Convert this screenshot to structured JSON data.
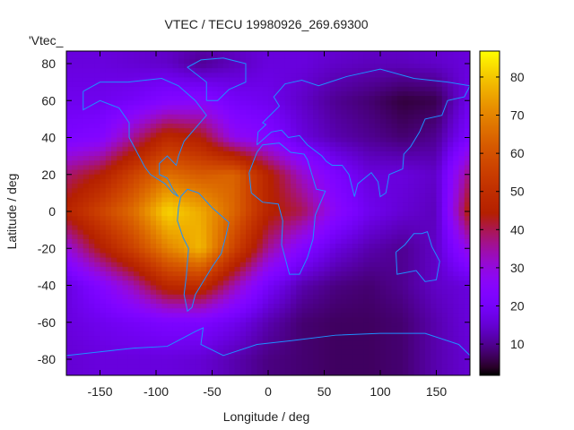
{
  "chart_data": {
    "type": "heatmap",
    "title": "VTEC / TECU 19980926_269.69300",
    "xlabel": "Longitude / deg",
    "ylabel": "Latitude / deg",
    "key_label": "'Vtec_",
    "xlim": [
      -180,
      180
    ],
    "ylim": [
      -88.7,
      86.8
    ],
    "xticks": [
      -150,
      -100,
      -50,
      0,
      50,
      100,
      150
    ],
    "yticks": [
      -80,
      -60,
      -40,
      -20,
      0,
      20,
      40,
      60,
      80
    ],
    "colorbar": {
      "range": [
        1.8,
        86.8
      ],
      "ticks": [
        10,
        20,
        30,
        40,
        50,
        60,
        70,
        80
      ],
      "palette": "black-purple-red-orange-yellow"
    },
    "grid_lon": [
      -180,
      -150,
      -120,
      -90,
      -60,
      -30,
      0,
      30,
      60,
      90,
      120,
      150,
      180
    ],
    "grid_lat": [
      90,
      80,
      60,
      40,
      20,
      0,
      -20,
      -40,
      -60,
      -80,
      -90
    ],
    "values": [
      [
        16,
        16,
        15,
        14,
        12,
        14,
        16,
        16,
        15,
        14,
        14,
        15,
        16
      ],
      [
        16,
        16,
        15,
        14,
        10,
        13,
        16,
        16,
        14,
        13,
        13,
        14,
        16
      ],
      [
        18,
        18,
        20,
        24,
        25,
        20,
        18,
        14,
        10,
        8,
        5,
        6,
        18
      ],
      [
        22,
        24,
        36,
        48,
        44,
        28,
        24,
        16,
        12,
        10,
        8,
        10,
        22
      ],
      [
        38,
        44,
        56,
        66,
        62,
        64,
        46,
        32,
        22,
        16,
        16,
        14,
        38
      ],
      [
        46,
        56,
        66,
        82,
        76,
        64,
        46,
        40,
        26,
        18,
        15,
        13,
        46
      ],
      [
        30,
        44,
        56,
        70,
        78,
        56,
        36,
        24,
        16,
        12,
        10,
        14,
        30
      ],
      [
        16,
        24,
        34,
        48,
        50,
        34,
        20,
        12,
        9,
        8,
        10,
        14,
        16
      ],
      [
        16,
        18,
        20,
        22,
        22,
        18,
        12,
        8,
        7,
        7,
        8,
        12,
        16
      ],
      [
        15,
        16,
        16,
        16,
        15,
        12,
        9,
        8,
        7,
        7,
        8,
        12,
        15
      ],
      [
        15,
        16,
        16,
        16,
        15,
        12,
        9,
        8,
        7,
        7,
        8,
        12,
        15
      ]
    ],
    "coastline_color": "#1e90ff"
  }
}
